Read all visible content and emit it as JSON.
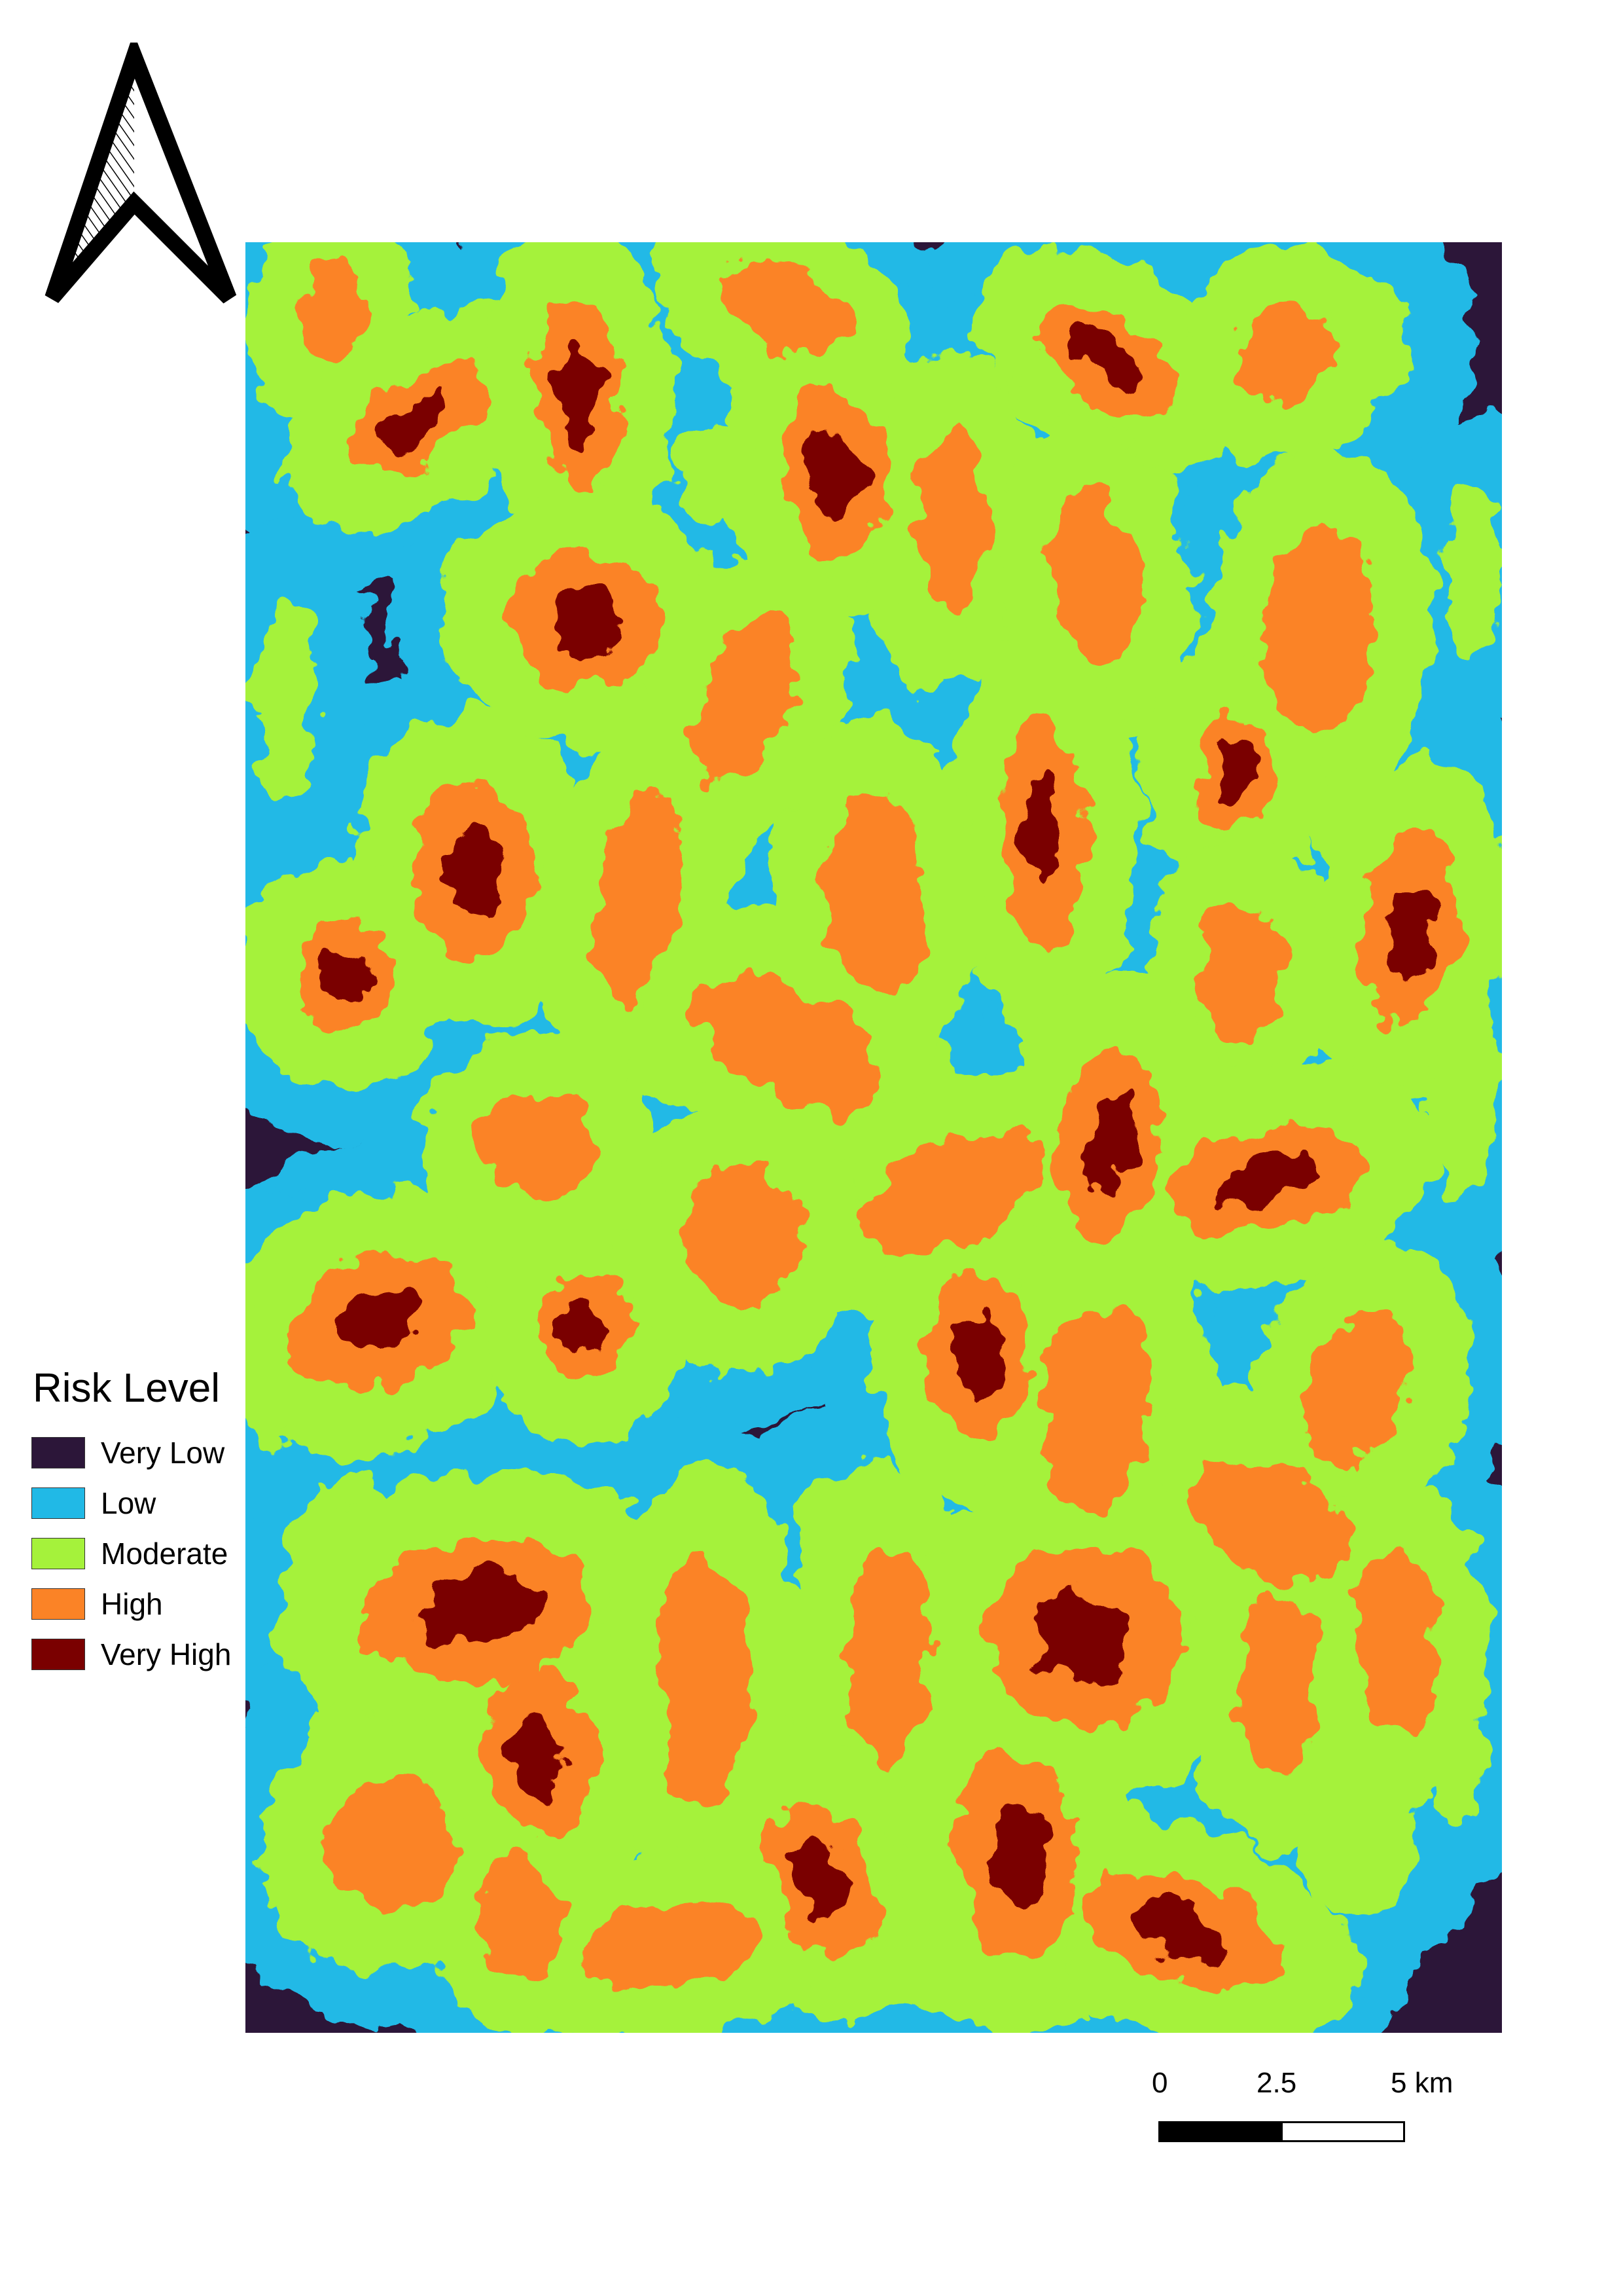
{
  "legend": {
    "title": "Risk Level",
    "items": [
      {
        "label": "Very Low",
        "color": "#2c1639"
      },
      {
        "label": "Low",
        "color": "#21b9e6"
      },
      {
        "label": "Moderate",
        "color": "#a5f23b"
      },
      {
        "label": "High",
        "color": "#fb8326"
      },
      {
        "label": "Very High",
        "color": "#7a0000"
      }
    ]
  },
  "scale_bar": {
    "ticks": [
      "0",
      "2.5",
      "5 km"
    ],
    "fill_colors": [
      "#000000",
      "#ffffff"
    ]
  },
  "north_arrow": {
    "icon": "north-arrow-icon"
  },
  "map": {
    "background_class": "Very Low",
    "pattern": "clustered risk hotspots"
  }
}
